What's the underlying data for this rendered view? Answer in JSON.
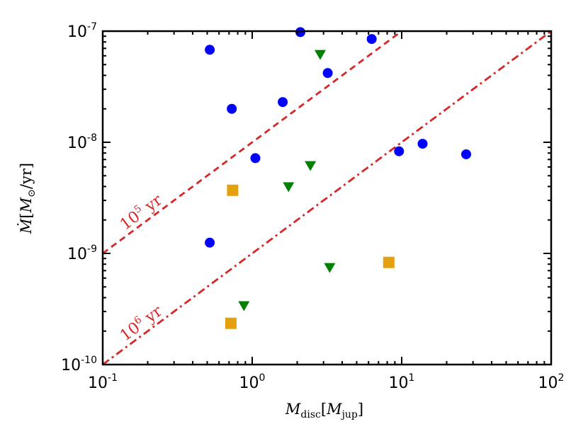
{
  "chart_data": {
    "type": "scatter",
    "x_scale": "log",
    "y_scale": "log",
    "xlim": [
      0.1,
      100
    ],
    "ylim": [
      1e-10,
      1e-07
    ],
    "xlabel": {
      "main": "M",
      "sub": "disc",
      "open": "[",
      "inner": "M",
      "inner_sub": "jup",
      "close": "]"
    },
    "ylabel": {
      "main": "Ṁ",
      "open": "[",
      "inner": "M",
      "inner_sub": "⊙",
      "unit": "/yr",
      "close": "]"
    },
    "x_ticks": [
      {
        "base": "10",
        "exp": "-1",
        "value": 0.1
      },
      {
        "base": "10",
        "exp": "0",
        "value": 1
      },
      {
        "base": "10",
        "exp": "1",
        "value": 10
      },
      {
        "base": "10",
        "exp": "2",
        "value": 100
      }
    ],
    "y_ticks": [
      {
        "base": "10",
        "exp": "-10",
        "value": 1e-10
      },
      {
        "base": "10",
        "exp": "-9",
        "value": 1e-09
      },
      {
        "base": "10",
        "exp": "-8",
        "value": 1e-08
      },
      {
        "base": "10",
        "exp": "-7",
        "value": 1e-07
      }
    ],
    "series": [
      {
        "name": "circles",
        "marker": "circle",
        "color": "#0000ff",
        "points": [
          [
            0.52,
            6.8e-08
          ],
          [
            0.73,
            2e-08
          ],
          [
            1.05,
            7.2e-09
          ],
          [
            1.6,
            2.3e-08
          ],
          [
            2.1,
            9.8e-08
          ],
          [
            3.2,
            4.2e-08
          ],
          [
            6.3,
            8.5e-08
          ],
          [
            9.6,
            8.3e-09
          ],
          [
            13.8,
            9.7e-09
          ],
          [
            27.0,
            7.8e-09
          ],
          [
            0.52,
            1.25e-09
          ]
        ]
      },
      {
        "name": "triangles",
        "marker": "triangle-down",
        "color": "#007f00",
        "points": [
          [
            2.85,
            6.2e-08
          ],
          [
            2.45,
            6.2e-09
          ],
          [
            1.75,
            4e-09
          ],
          [
            3.3,
            7.5e-10
          ],
          [
            0.88,
            3.4e-10
          ]
        ]
      },
      {
        "name": "squares",
        "marker": "square",
        "color": "#e5a00d",
        "points": [
          [
            0.74,
            3.7e-09
          ],
          [
            8.2,
            8.3e-10
          ],
          [
            0.72,
            2.35e-10
          ]
        ]
      }
    ],
    "reference_lines": [
      {
        "name": "1e5-yr",
        "style": "dashed",
        "color": "#d62728",
        "timescale_yr": 100000.0,
        "label_base": "10",
        "label_exp": "5",
        "label_unit": "yr"
      },
      {
        "name": "1e6-yr",
        "style": "dashdot",
        "color": "#d62728",
        "timescale_yr": 1000000.0,
        "label_base": "10",
        "label_exp": "6",
        "label_unit": "yr"
      }
    ]
  }
}
